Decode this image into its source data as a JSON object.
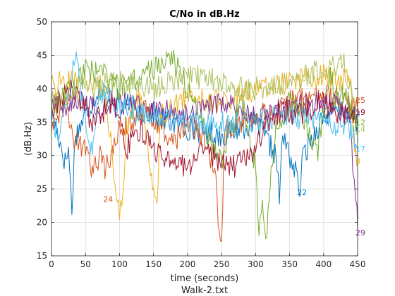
{
  "chart_data": {
    "type": "line",
    "title": "C/No in dB.Hz",
    "xlabel": "time (seconds)",
    "ylabel": "(dB.Hz)",
    "footer": "Walk-2.txt",
    "xlim": [
      0,
      450
    ],
    "ylim": [
      15,
      50
    ],
    "xticks": [
      0,
      50,
      100,
      150,
      200,
      250,
      300,
      350,
      400,
      450
    ],
    "yticks": [
      15,
      20,
      25,
      30,
      35,
      40,
      45,
      50
    ],
    "grid": true,
    "series": [
      {
        "name": "2",
        "color": "#0072BD",
        "points": [
          [
            0,
            36
          ],
          [
            10,
            33
          ],
          [
            20,
            29
          ],
          [
            25,
            31
          ],
          [
            30,
            22
          ],
          [
            35,
            33
          ],
          [
            50,
            36
          ],
          [
            70,
            40
          ],
          [
            100,
            38
          ],
          [
            150,
            36
          ],
          [
            200,
            34
          ],
          [
            250,
            33
          ],
          [
            300,
            35
          ],
          [
            330,
            30
          ],
          [
            335,
            24
          ],
          [
            340,
            33
          ],
          [
            360,
            27
          ],
          [
            365,
            25
          ],
          [
            370,
            30
          ],
          [
            400,
            36
          ],
          [
            430,
            37
          ],
          [
            450,
            35
          ]
        ],
        "label_at": [
          449,
          36.3
        ]
      },
      {
        "name": "25",
        "color": "#D95319",
        "points": [
          [
            0,
            35
          ],
          [
            20,
            38
          ],
          [
            35,
            32
          ],
          [
            50,
            31
          ],
          [
            60,
            27
          ],
          [
            70,
            30
          ],
          [
            80,
            28
          ],
          [
            100,
            34
          ],
          [
            120,
            35
          ],
          [
            140,
            37
          ],
          [
            160,
            34
          ],
          [
            180,
            32
          ],
          [
            200,
            35
          ],
          [
            220,
            33
          ],
          [
            240,
            28
          ],
          [
            245,
            20
          ],
          [
            250,
            18
          ],
          [
            255,
            34
          ],
          [
            300,
            36
          ],
          [
            350,
            38
          ],
          [
            400,
            39
          ],
          [
            440,
            38
          ],
          [
            450,
            37
          ]
        ],
        "label_at": [
          449,
          38.3
        ]
      },
      {
        "name": "8",
        "color": "#EDB120",
        "points": [
          [
            0,
            40
          ],
          [
            30,
            42
          ],
          [
            50,
            40
          ],
          [
            70,
            41
          ],
          [
            80,
            38
          ],
          [
            90,
            30
          ],
          [
            95,
            24
          ],
          [
            100,
            21
          ],
          [
            105,
            25
          ],
          [
            110,
            34
          ],
          [
            130,
            39
          ],
          [
            140,
            33
          ],
          [
            150,
            25
          ],
          [
            155,
            22
          ],
          [
            160,
            36
          ],
          [
            200,
            39
          ],
          [
            250,
            38
          ],
          [
            300,
            40
          ],
          [
            350,
            41
          ],
          [
            400,
            42
          ],
          [
            440,
            41
          ],
          [
            446,
            30
          ],
          [
            450,
            29
          ]
        ],
        "label_at": [
          449,
          29.2
        ]
      },
      {
        "name": "29",
        "color": "#7E2F8E",
        "points": [
          [
            0,
            38
          ],
          [
            20,
            37
          ],
          [
            50,
            38
          ],
          [
            80,
            36
          ],
          [
            100,
            38
          ],
          [
            150,
            37
          ],
          [
            200,
            36
          ],
          [
            250,
            38
          ],
          [
            300,
            36
          ],
          [
            350,
            37
          ],
          [
            400,
            38
          ],
          [
            430,
            37
          ],
          [
            440,
            36
          ],
          [
            443,
            28
          ],
          [
            445,
            26
          ],
          [
            447,
            22
          ],
          [
            449,
            21
          ],
          [
            450,
            19
          ]
        ],
        "label_at": [
          449,
          18.5
        ]
      },
      {
        "name": "12",
        "color": "#77AC30",
        "points": [
          [
            0,
            37
          ],
          [
            30,
            40
          ],
          [
            50,
            43
          ],
          [
            80,
            42
          ],
          [
            100,
            40
          ],
          [
            120,
            41
          ],
          [
            150,
            43
          ],
          [
            175,
            45
          ],
          [
            190,
            42
          ],
          [
            210,
            38
          ],
          [
            230,
            33
          ],
          [
            250,
            29
          ],
          [
            265,
            34
          ],
          [
            280,
            38
          ],
          [
            290,
            34
          ],
          [
            300,
            28
          ],
          [
            305,
            18
          ],
          [
            310,
            22
          ],
          [
            315,
            16
          ],
          [
            320,
            24
          ],
          [
            330,
            34
          ],
          [
            350,
            38
          ],
          [
            370,
            36
          ],
          [
            390,
            30
          ],
          [
            410,
            42
          ],
          [
            420,
            38
          ],
          [
            430,
            40
          ],
          [
            450,
            34
          ]
        ],
        "label_at": [
          449,
          35
        ]
      },
      {
        "name": "17",
        "color": "#4DBEEE",
        "points": [
          [
            0,
            36
          ],
          [
            10,
            33
          ],
          [
            20,
            38
          ],
          [
            30,
            41
          ],
          [
            35,
            46
          ],
          [
            45,
            38
          ],
          [
            60,
            30
          ],
          [
            70,
            40
          ],
          [
            100,
            37
          ],
          [
            150,
            36
          ],
          [
            200,
            35
          ],
          [
            250,
            35
          ],
          [
            300,
            35
          ],
          [
            350,
            36
          ],
          [
            400,
            35
          ],
          [
            440,
            34
          ],
          [
            450,
            31
          ]
        ],
        "label_at": [
          449,
          31
        ]
      },
      {
        "name": "19",
        "color": "#A2142F",
        "points": [
          [
            0,
            37
          ],
          [
            30,
            40
          ],
          [
            60,
            35
          ],
          [
            90,
            38
          ],
          [
            110,
            31
          ],
          [
            130,
            34
          ],
          [
            160,
            30
          ],
          [
            180,
            29
          ],
          [
            200,
            28
          ],
          [
            220,
            31
          ],
          [
            240,
            30
          ],
          [
            260,
            28
          ],
          [
            280,
            29
          ],
          [
            300,
            31
          ],
          [
            320,
            35
          ],
          [
            340,
            37
          ],
          [
            360,
            36
          ],
          [
            380,
            37
          ],
          [
            400,
            38
          ],
          [
            420,
            36
          ],
          [
            450,
            36
          ]
        ],
        "label_at": [
          449,
          36.5
        ]
      },
      {
        "name": "14",
        "color": "#ACC25F",
        "points": [
          [
            0,
            38
          ],
          [
            50,
            40
          ],
          [
            100,
            41
          ],
          [
            150,
            40
          ],
          [
            200,
            42
          ],
          [
            250,
            41
          ],
          [
            300,
            40
          ],
          [
            350,
            41
          ],
          [
            400,
            43
          ],
          [
            430,
            44
          ],
          [
            440,
            40
          ],
          [
            450,
            34
          ]
        ],
        "label_at": [
          449,
          34
        ]
      },
      {
        "name": "22",
        "color": "#0072BD",
        "points": [
          [
            365,
            25
          ]
        ],
        "label_at": [
          363,
          24.5
        ]
      },
      {
        "name": "24",
        "color": "#D95319",
        "points": [
          [
            78,
            24
          ]
        ],
        "label_at": [
          78,
          23.5
        ]
      },
      {
        "name": "",
        "color": "#EDB120",
        "points": [
          [
            205,
            24
          ]
        ],
        "label_at": [
          205,
          23.5
        ]
      }
    ]
  }
}
